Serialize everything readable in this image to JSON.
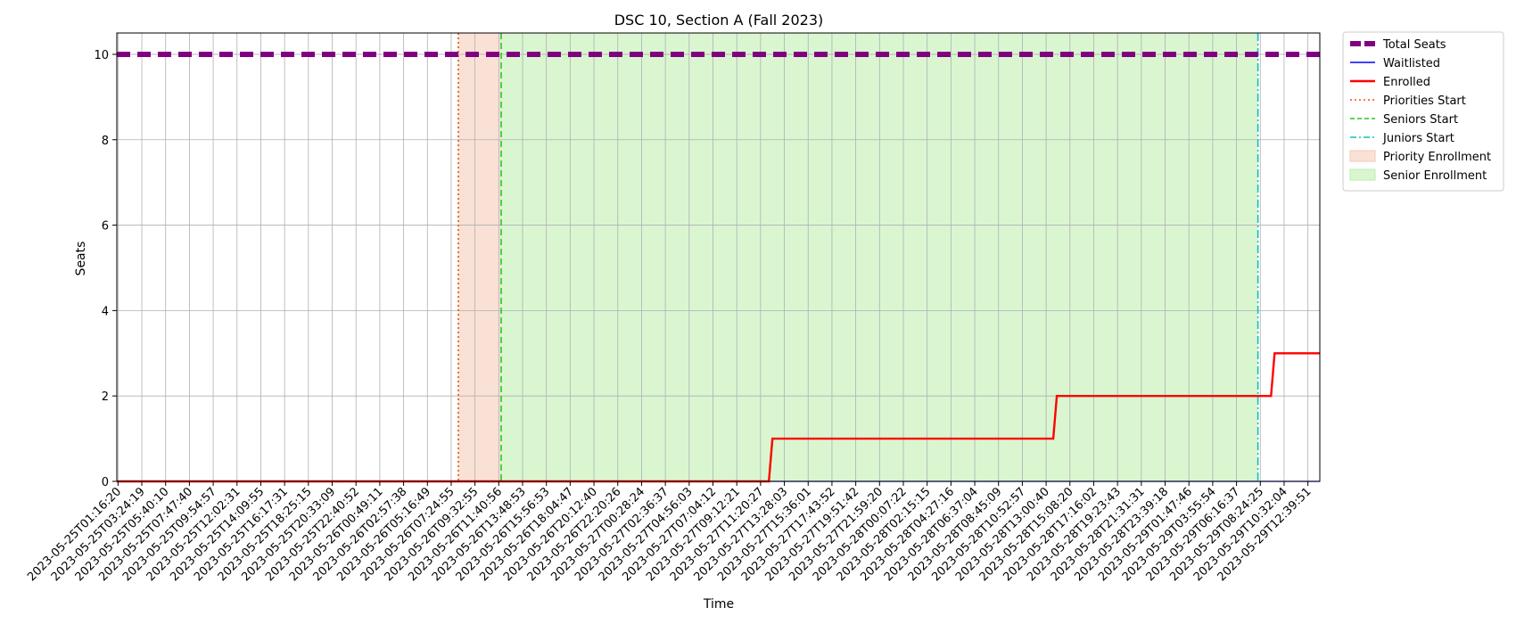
{
  "chart_data": {
    "type": "line",
    "title": "DSC 10, Section A (Fall 2023)",
    "xlabel": "Time",
    "ylabel": "Seats",
    "ylim": [
      0,
      10.5
    ],
    "yticks": [
      0,
      2,
      4,
      6,
      8,
      10
    ],
    "grid": true,
    "legend_position": "outside-top-right",
    "x_ticks": [
      "2023-05-25T01:16:20",
      "2023-05-25T03:24:19",
      "2023-05-25T05:40:10",
      "2023-05-25T07:47:40",
      "2023-05-25T09:54:57",
      "2023-05-25T12:02:31",
      "2023-05-25T14:09:55",
      "2023-05-25T16:17:31",
      "2023-05-25T18:25:15",
      "2023-05-25T20:33:09",
      "2023-05-25T22:40:52",
      "2023-05-26T00:49:11",
      "2023-05-26T02:57:38",
      "2023-05-26T05:16:49",
      "2023-05-26T07:24:55",
      "2023-05-26T09:32:55",
      "2023-05-26T11:40:56",
      "2023-05-26T13:48:53",
      "2023-05-26T15:56:53",
      "2023-05-26T18:04:47",
      "2023-05-26T20:12:40",
      "2023-05-26T22:20:26",
      "2023-05-27T00:28:24",
      "2023-05-27T02:36:37",
      "2023-05-27T04:56:03",
      "2023-05-27T07:04:12",
      "2023-05-27T09:12:21",
      "2023-05-27T11:20:27",
      "2023-05-27T13:28:03",
      "2023-05-27T15:36:01",
      "2023-05-27T17:43:52",
      "2023-05-27T19:51:42",
      "2023-05-27T21:59:20",
      "2023-05-28T00:07:22",
      "2023-05-28T02:15:15",
      "2023-05-28T04:27:16",
      "2023-05-28T06:37:04",
      "2023-05-28T08:45:09",
      "2023-05-28T10:52:57",
      "2023-05-28T13:00:40",
      "2023-05-28T15:08:20",
      "2023-05-28T17:16:02",
      "2023-05-28T19:23:43",
      "2023-05-28T21:31:31",
      "2023-05-28T23:39:18",
      "2023-05-29T01:47:46",
      "2023-05-29T03:55:54",
      "2023-05-29T06:16:37",
      "2023-05-29T08:24:25",
      "2023-05-29T10:32:04",
      "2023-05-29T12:39:51"
    ],
    "x_range": [
      -0.05,
      50.5
    ],
    "series": [
      {
        "name": "Total Seats",
        "color": "#800080",
        "style": "dashed-thick",
        "points": [
          [
            -0.05,
            10
          ],
          [
            50.5,
            10
          ]
        ]
      },
      {
        "name": "Waitlisted",
        "color": "#0000ff",
        "style": "solid-thin",
        "points": [
          [
            -0.05,
            0
          ],
          [
            50.5,
            0
          ]
        ]
      },
      {
        "name": "Enrolled",
        "color": "#ff0000",
        "style": "solid",
        "points": [
          [
            -0.05,
            0
          ],
          [
            27.35,
            0
          ],
          [
            27.5,
            1
          ],
          [
            39.3,
            1
          ],
          [
            39.45,
            2
          ],
          [
            48.45,
            2
          ],
          [
            48.6,
            3
          ],
          [
            50.5,
            3
          ]
        ]
      }
    ],
    "vlines": [
      {
        "name": "Priorities Start",
        "color": "#e8501a",
        "style": "dotted",
        "x": 14.3
      },
      {
        "name": "Seniors Start",
        "color": "#22cc22",
        "style": "dashed",
        "x": 16.1
      },
      {
        "name": "Juniors Start",
        "color": "#11bfbf",
        "style": "dashdot",
        "x": 47.9
      }
    ],
    "spans": [
      {
        "name": "Priority Enrollment",
        "color": "#f6c8b4",
        "x0": 14.3,
        "x1": 16.1
      },
      {
        "name": "Senior Enrollment",
        "color": "#b9eeab",
        "x0": 16.1,
        "x1": 47.9
      }
    ]
  }
}
